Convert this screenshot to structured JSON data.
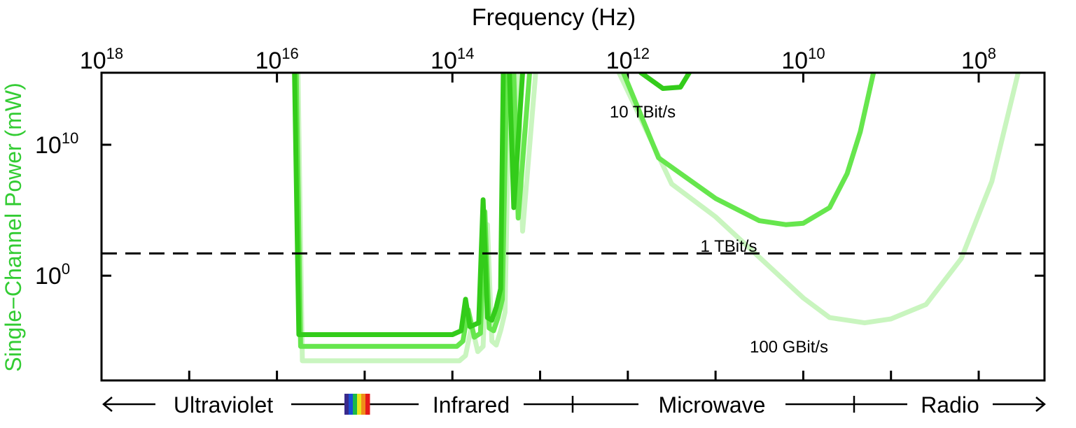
{
  "chart_data": {
    "type": "line",
    "title": "Frequency (Hz)",
    "xlabel": "Frequency (Hz)",
    "ylabel": "Single−Channel Power (mW)",
    "ylabel_color": "#33cc33",
    "x_scale": "log, decreasing left to right",
    "xlim_exponent": [
      18.0,
      7.25
    ],
    "ylim_exponent": [
      -8.0,
      15.5
    ],
    "x_ticks": [
      {
        "base": "10",
        "exp": "18",
        "value": 18
      },
      {
        "base": "10",
        "exp": "16",
        "value": 16
      },
      {
        "base": "10",
        "exp": "14",
        "value": 14
      },
      {
        "base": "10",
        "exp": "12",
        "value": 12
      },
      {
        "base": "10",
        "exp": "10",
        "value": 10
      },
      {
        "base": "10",
        "exp": "8",
        "value": 8
      }
    ],
    "y_ticks": [
      {
        "base": "10",
        "exp": "10",
        "value": 10
      },
      {
        "base": "10",
        "exp": "0",
        "value": 0
      }
    ],
    "threshold": {
      "log10_power": 1.7,
      "style": "dashed"
    },
    "series": [
      {
        "name": "10 TBit/s",
        "color": "#33cc1a",
        "points": [
          [
            15.8,
            15.5
          ],
          [
            15.75,
            -4.5
          ],
          [
            14.0,
            -4.5
          ],
          [
            13.9,
            -4.2
          ],
          [
            13.85,
            -1.8
          ],
          [
            13.8,
            -3.9
          ],
          [
            13.7,
            -3.6
          ],
          [
            13.65,
            5.8
          ],
          [
            13.6,
            -3.2
          ],
          [
            13.55,
            -3.4
          ],
          [
            13.5,
            -2.4
          ],
          [
            13.45,
            -1.0
          ],
          [
            13.42,
            15.5
          ]
        ],
        "points_b": [
          [
            13.35,
            15.5
          ],
          [
            13.3,
            5.2
          ],
          [
            13.2,
            15.5
          ]
        ],
        "points_c": [
          [
            11.85,
            15.5
          ],
          [
            11.6,
            14.3
          ],
          [
            11.4,
            14.4
          ],
          [
            11.3,
            15.5
          ]
        ]
      },
      {
        "name": "1 TBit/s",
        "color": "#66e64d",
        "points": [
          [
            15.78,
            15.5
          ],
          [
            15.73,
            -5.4
          ],
          [
            13.95,
            -5.4
          ],
          [
            13.88,
            -5.0
          ],
          [
            13.82,
            -2.6
          ],
          [
            13.75,
            -4.7
          ],
          [
            13.68,
            -4.4
          ],
          [
            13.63,
            4.9
          ],
          [
            13.58,
            -4.0
          ],
          [
            13.53,
            -4.2
          ],
          [
            13.48,
            -3.2
          ],
          [
            13.43,
            -1.8
          ],
          [
            13.38,
            15.5
          ]
        ],
        "points_b": [
          [
            13.3,
            15.5
          ],
          [
            13.25,
            4.4
          ],
          [
            13.12,
            15.5
          ]
        ],
        "points_c": [
          [
            12.05,
            15.5
          ],
          [
            11.65,
            9.0
          ],
          [
            11.0,
            5.9
          ],
          [
            10.5,
            4.2
          ],
          [
            10.2,
            3.9
          ],
          [
            10.0,
            4.0
          ],
          [
            9.7,
            5.2
          ],
          [
            9.5,
            7.8
          ],
          [
            9.35,
            11.0
          ],
          [
            9.2,
            15.5
          ]
        ]
      },
      {
        "name": "100 GBit/s",
        "color": "#c9f5bf",
        "points": [
          [
            15.76,
            15.5
          ],
          [
            15.71,
            -6.5
          ],
          [
            13.92,
            -6.5
          ],
          [
            13.85,
            -6.1
          ],
          [
            13.78,
            -3.8
          ],
          [
            13.71,
            -5.8
          ],
          [
            13.65,
            -5.4
          ],
          [
            13.6,
            3.9
          ],
          [
            13.55,
            -5.0
          ],
          [
            13.5,
            -5.3
          ],
          [
            13.45,
            -4.2
          ],
          [
            13.4,
            -2.8
          ],
          [
            13.35,
            15.5
          ]
        ],
        "points_b": [
          [
            13.25,
            15.5
          ],
          [
            13.2,
            3.4
          ],
          [
            13.05,
            15.5
          ]
        ],
        "points_c": [
          [
            12.1,
            15.5
          ],
          [
            11.5,
            7.0
          ],
          [
            11.0,
            4.5
          ],
          [
            10.5,
            1.4
          ],
          [
            10.0,
            -1.7
          ],
          [
            9.7,
            -3.2
          ],
          [
            9.3,
            -3.6
          ],
          [
            9.0,
            -3.3
          ],
          [
            8.6,
            -2.2
          ],
          [
            8.2,
            1.3
          ],
          [
            7.85,
            7.2
          ],
          [
            7.55,
            15.5
          ]
        ]
      }
    ],
    "annotations": [
      {
        "text": "10 TBit/s",
        "series": 0
      },
      {
        "text": "1 TBit/s",
        "series": 1
      },
      {
        "text": "100 GBit/s",
        "series": 2
      }
    ],
    "bands": [
      {
        "name": "Ultraviolet"
      },
      {
        "name": "Infrared"
      },
      {
        "name": "Microwave"
      },
      {
        "name": "Radio"
      }
    ],
    "visible_spectrum_colors": [
      "#3a2a8c",
      "#1a4fd6",
      "#1ab84a",
      "#e6e61a",
      "#f08c1a",
      "#e61a1a"
    ]
  }
}
